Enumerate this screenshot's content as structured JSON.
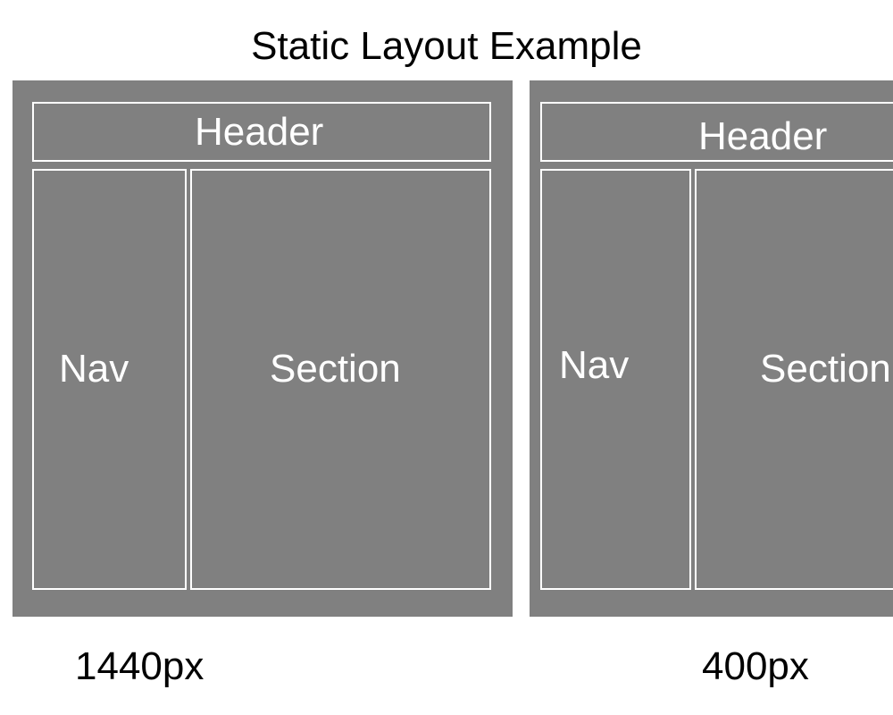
{
  "title": "Static Layout Example",
  "colors": {
    "frame_background": "#808080",
    "box_border": "#ffffff",
    "box_text": "#ffffff",
    "page_background": "#ffffff"
  },
  "examples": [
    {
      "header": "Header",
      "nav": "Nav",
      "section": "Section",
      "caption": "1440px"
    },
    {
      "header": "Header",
      "nav": "Nav",
      "section": "Section",
      "caption": "400px"
    }
  ]
}
